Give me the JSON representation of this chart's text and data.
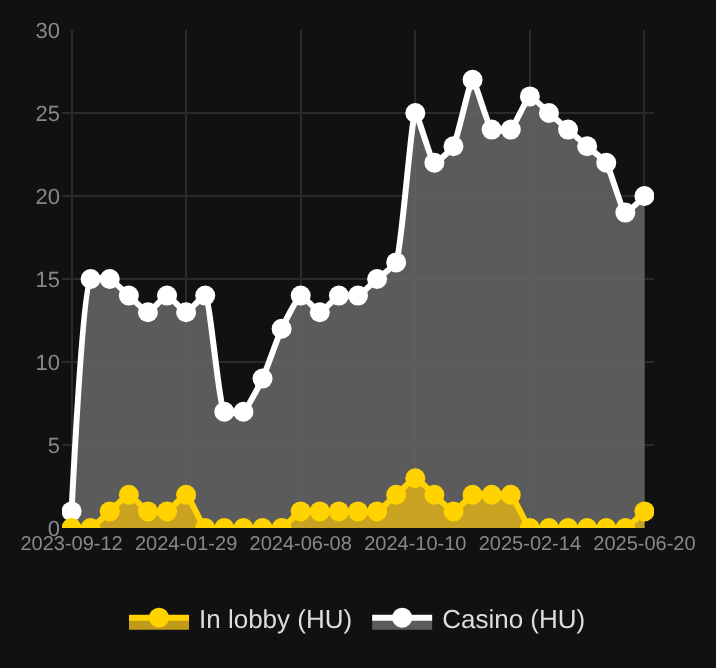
{
  "chart_data": {
    "type": "area",
    "categories": [
      "2023-09-12",
      null,
      null,
      null,
      null,
      null,
      "2024-01-29",
      null,
      null,
      null,
      null,
      null,
      "2024-06-08",
      null,
      null,
      null,
      null,
      null,
      "2024-10-10",
      null,
      null,
      null,
      null,
      null,
      "2025-02-14",
      null,
      null,
      null,
      null,
      null,
      "2025-06-20"
    ],
    "series": [
      {
        "name": "In lobby (HU)",
        "color": "#ffd200",
        "values": [
          0,
          0,
          1,
          2,
          1,
          1,
          2,
          0,
          0,
          0,
          0,
          0,
          1,
          1,
          1,
          1,
          1,
          2,
          3,
          2,
          1,
          2,
          2,
          2,
          0,
          0,
          0,
          0,
          0,
          0,
          1
        ]
      },
      {
        "name": "Casino (HU)",
        "color": "#ffffff",
        "values": [
          1,
          15,
          15,
          14,
          13,
          14,
          13,
          14,
          7,
          7,
          9,
          12,
          14,
          13,
          14,
          14,
          15,
          16,
          25,
          22,
          23,
          27,
          24,
          24,
          26,
          25,
          24,
          23,
          22,
          19,
          20
        ]
      }
    ],
    "ylim": [
      0,
      30
    ],
    "yticks": [
      0,
      5,
      10,
      15,
      20,
      25,
      30
    ],
    "grid": true,
    "legend": "bottom",
    "marker": "circle",
    "line_style": "solid"
  }
}
